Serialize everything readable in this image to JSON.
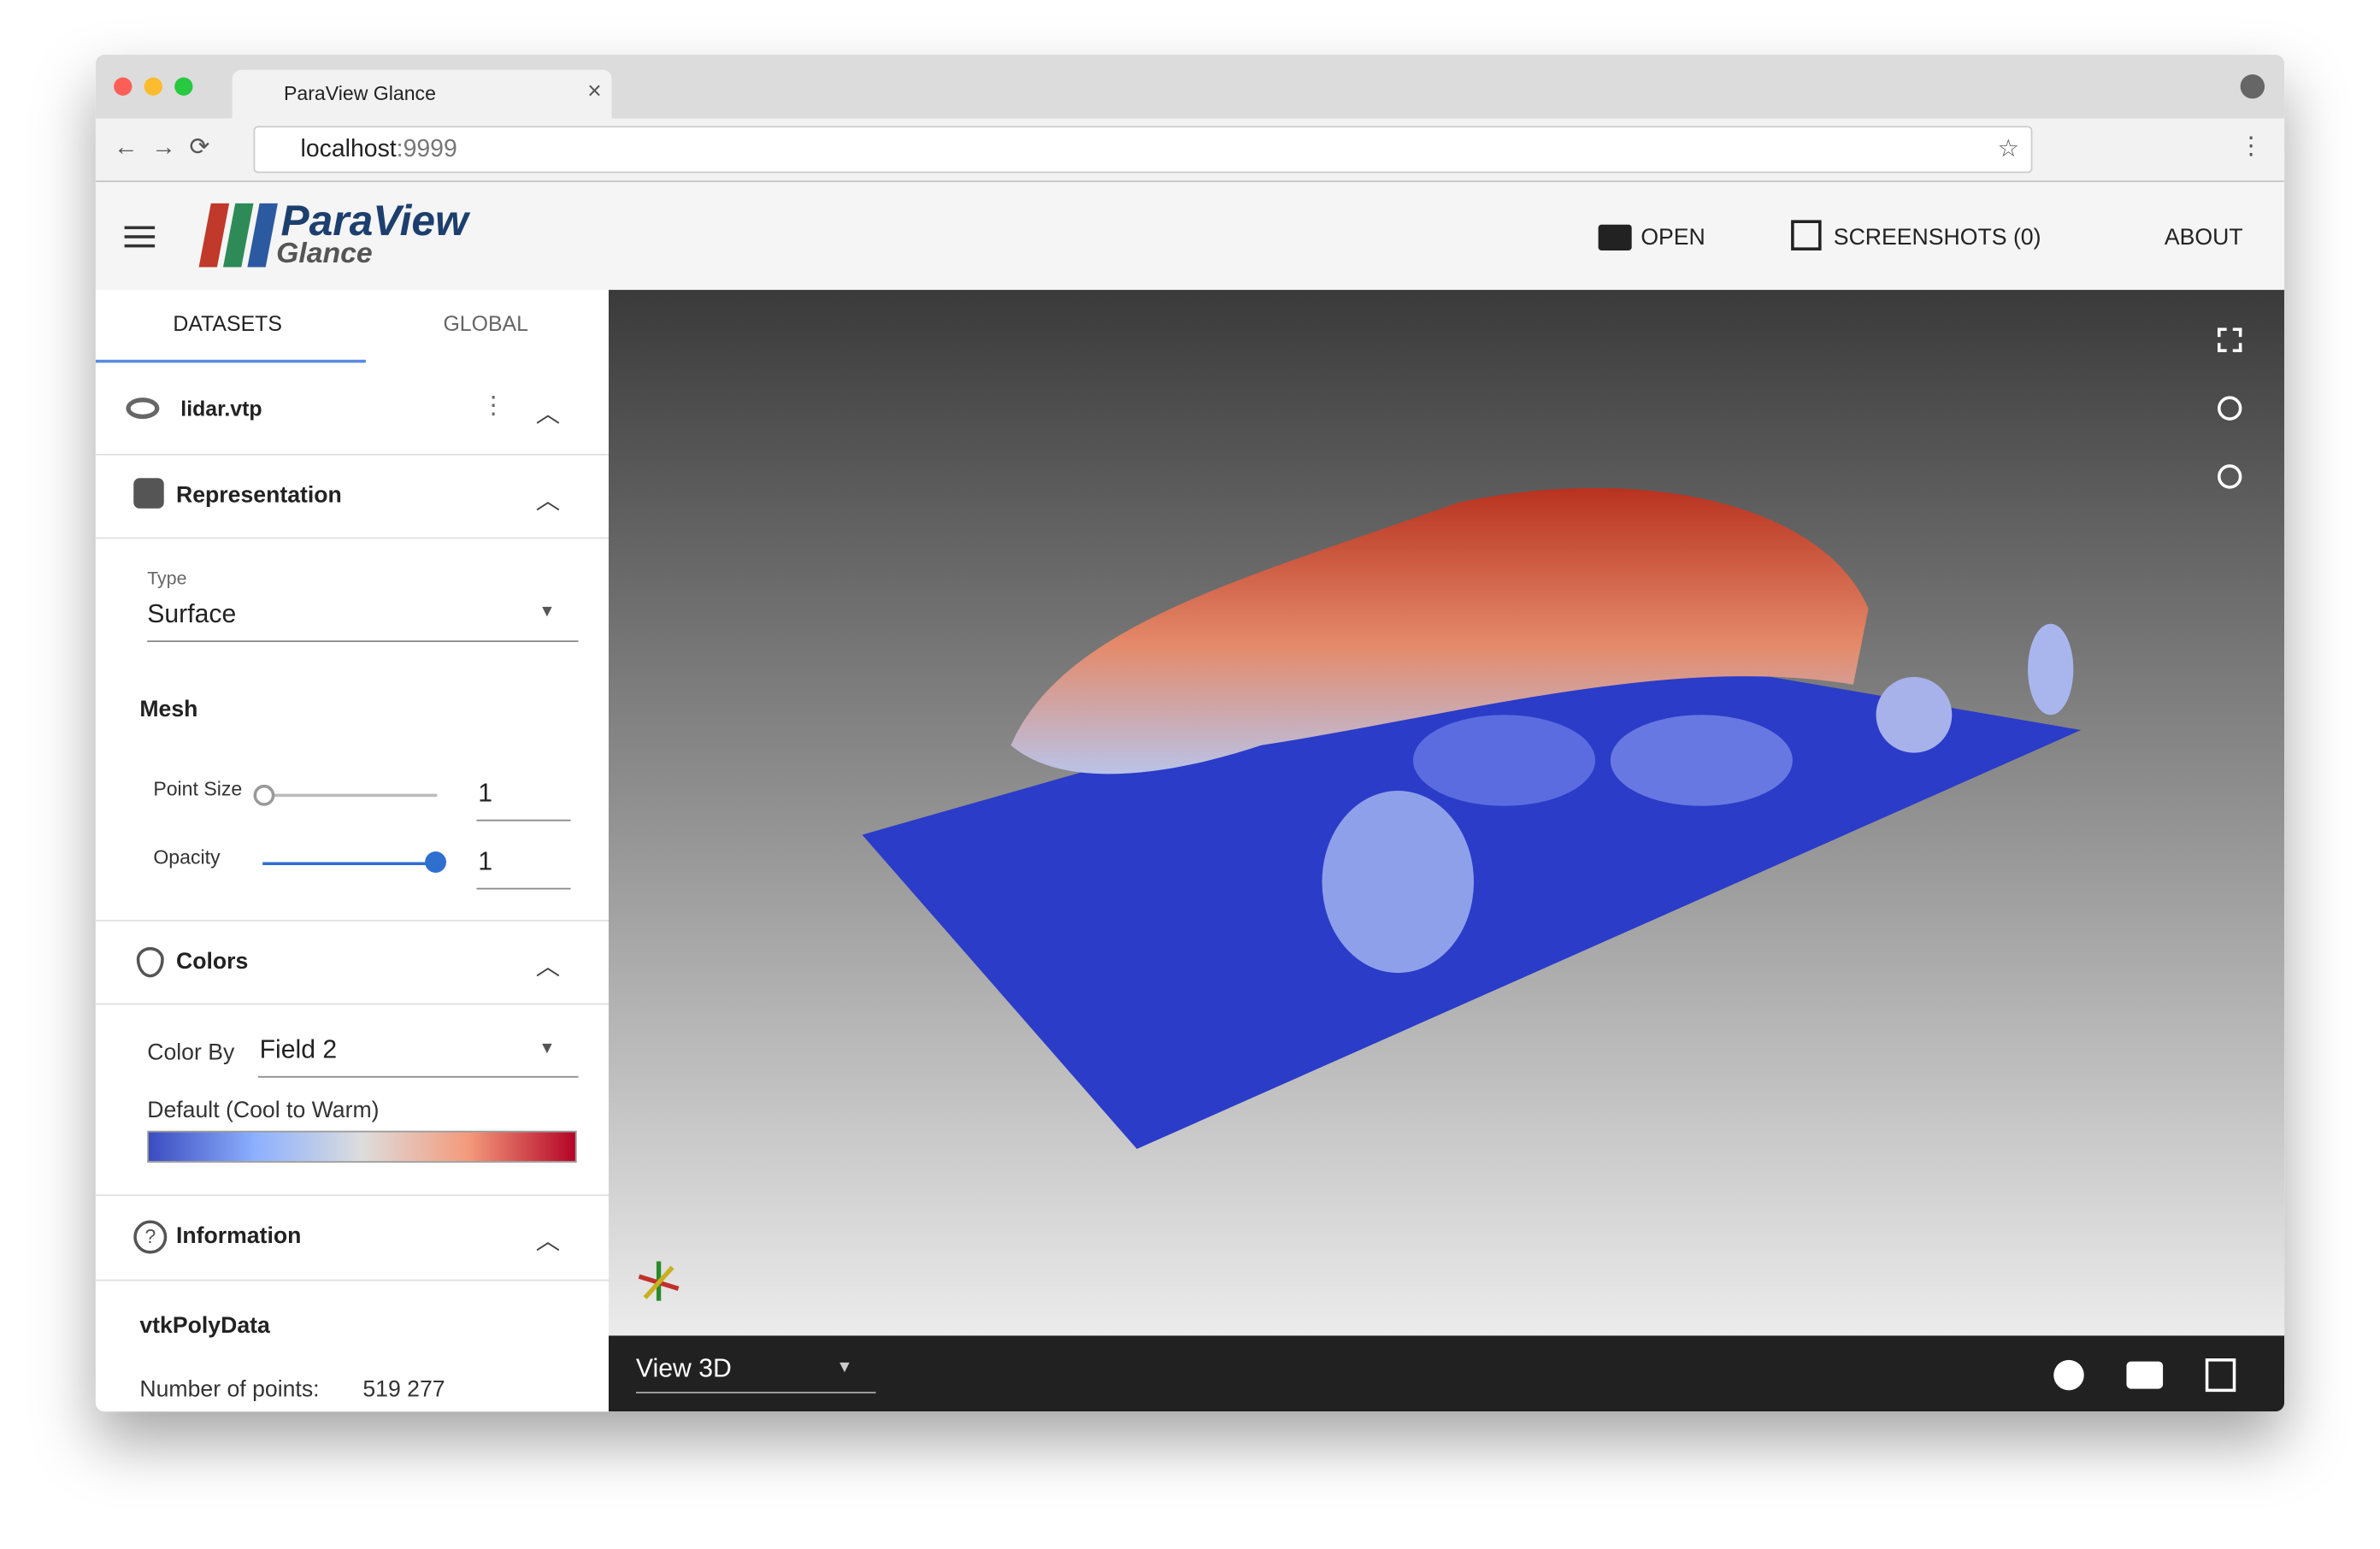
{
  "browser": {
    "tab_title": "ParaView Glance",
    "url_host": "localhost",
    "url_port": ":9999"
  },
  "app": {
    "logo_line1": "ParaView",
    "logo_line2": "Glance",
    "menu": [
      "OPEN",
      "SCREENSHOTS (0)",
      "ABOUT"
    ]
  },
  "sidebar": {
    "tabs": [
      "DATASETS",
      "GLOBAL"
    ],
    "dataset": "lidar.vtp",
    "representation": {
      "title": "Representation",
      "type_label": "Type",
      "type_value": "Surface",
      "mesh": "Mesh",
      "point_size_label": "Point Size",
      "point_size": 1,
      "opacity_label": "Opacity",
      "opacity": 1
    },
    "colors": {
      "title": "Colors",
      "color_by_label": "Color By",
      "color_by_value": "Field 2",
      "colormap": "Default (Cool to Warm)"
    },
    "information": {
      "title": "Information",
      "data_type": "vtkPolyData",
      "points_label": "Number of points:",
      "points_value": "519 277"
    }
  },
  "view": {
    "view_type": "View 3D"
  }
}
